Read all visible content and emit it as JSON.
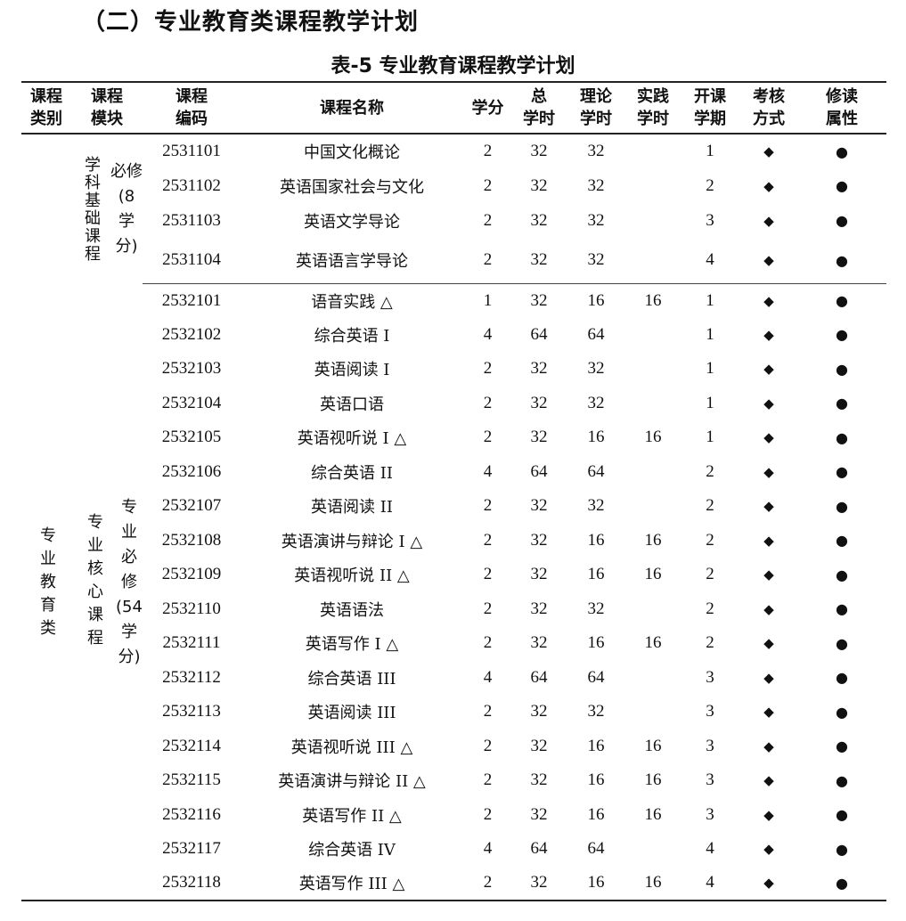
{
  "section_title": "（二）专业教育类课程教学计划",
  "table_caption": "表-5 专业教育课程教学计划",
  "headers": [
    "课程\n类别",
    "课程\n模块",
    "课程\n编码",
    "课程名称",
    "学分",
    "总\n学时",
    "理论\n学时",
    "实践\n学时",
    "开课\n学期",
    "考核\n方式",
    "修读\n属性"
  ],
  "category": "专业教育类",
  "modules": [
    {
      "name": "学科基础课程",
      "type": "必修(8学分)"
    },
    {
      "name": "专业核心课程",
      "type": "专业必修(54学分)"
    }
  ],
  "symbols": {
    "exam": "◆",
    "attribute": "●"
  },
  "rows": [
    {
      "code": "2531101",
      "name": "中国文化概论",
      "credit": "2",
      "total": "32",
      "theory": "32",
      "practice": "",
      "semester": "1"
    },
    {
      "code": "2531102",
      "name": "英语国家社会与文化",
      "credit": "2",
      "total": "32",
      "theory": "32",
      "practice": "",
      "semester": "2"
    },
    {
      "code": "2531103",
      "name": "英语文学导论",
      "credit": "2",
      "total": "32",
      "theory": "32",
      "practice": "",
      "semester": "3"
    },
    {
      "code": "2531104",
      "name": "英语语言学导论",
      "credit": "2",
      "total": "32",
      "theory": "32",
      "practice": "",
      "semester": "4"
    },
    {
      "code": "2532101",
      "name": "语音实践 △",
      "credit": "1",
      "total": "32",
      "theory": "16",
      "practice": "16",
      "semester": "1"
    },
    {
      "code": "2532102",
      "name": "综合英语 I",
      "credit": "4",
      "total": "64",
      "theory": "64",
      "practice": "",
      "semester": "1"
    },
    {
      "code": "2532103",
      "name": "英语阅读 I",
      "credit": "2",
      "total": "32",
      "theory": "32",
      "practice": "",
      "semester": "1"
    },
    {
      "code": "2532104",
      "name": "英语口语",
      "credit": "2",
      "total": "32",
      "theory": "32",
      "practice": "",
      "semester": "1"
    },
    {
      "code": "2532105",
      "name": "英语视听说 I △",
      "credit": "2",
      "total": "32",
      "theory": "16",
      "practice": "16",
      "semester": "1"
    },
    {
      "code": "2532106",
      "name": "综合英语 II",
      "credit": "4",
      "total": "64",
      "theory": "64",
      "practice": "",
      "semester": "2"
    },
    {
      "code": "2532107",
      "name": "英语阅读 II",
      "credit": "2",
      "total": "32",
      "theory": "32",
      "practice": "",
      "semester": "2"
    },
    {
      "code": "2532108",
      "name": "英语演讲与辩论 I △",
      "credit": "2",
      "total": "32",
      "theory": "16",
      "practice": "16",
      "semester": "2"
    },
    {
      "code": "2532109",
      "name": "英语视听说 II △",
      "credit": "2",
      "total": "32",
      "theory": "16",
      "practice": "16",
      "semester": "2"
    },
    {
      "code": "2532110",
      "name": "英语语法",
      "credit": "2",
      "total": "32",
      "theory": "32",
      "practice": "",
      "semester": "2"
    },
    {
      "code": "2532111",
      "name": "英语写作 I △",
      "credit": "2",
      "total": "32",
      "theory": "16",
      "practice": "16",
      "semester": "2"
    },
    {
      "code": "2532112",
      "name": "综合英语 III",
      "credit": "4",
      "total": "64",
      "theory": "64",
      "practice": "",
      "semester": "3"
    },
    {
      "code": "2532113",
      "name": "英语阅读 III",
      "credit": "2",
      "total": "32",
      "theory": "32",
      "practice": "",
      "semester": "3"
    },
    {
      "code": "2532114",
      "name": "英语视听说 III △",
      "credit": "2",
      "total": "32",
      "theory": "16",
      "practice": "16",
      "semester": "3"
    },
    {
      "code": "2532115",
      "name": "英语演讲与辩论 II △",
      "credit": "2",
      "total": "32",
      "theory": "16",
      "practice": "16",
      "semester": "3"
    },
    {
      "code": "2532116",
      "name": "英语写作 II △",
      "credit": "2",
      "total": "32",
      "theory": "16",
      "practice": "16",
      "semester": "3"
    },
    {
      "code": "2532117",
      "name": "综合英语 IV",
      "credit": "4",
      "total": "64",
      "theory": "64",
      "practice": "",
      "semester": "4"
    },
    {
      "code": "2532118",
      "name": "英语写作 III △",
      "credit": "2",
      "total": "32",
      "theory": "16",
      "practice": "16",
      "semester": "4"
    }
  ]
}
